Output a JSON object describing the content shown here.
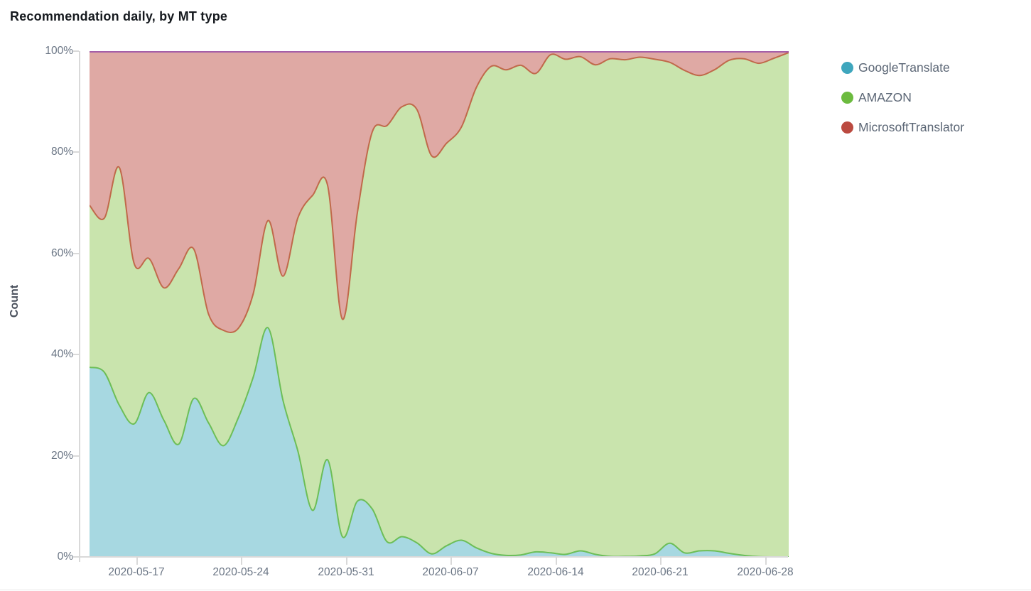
{
  "title": "Recommendation daily, by MT type",
  "y_axis": {
    "label": "Count",
    "ticks": [
      "100%",
      "80%",
      "60%",
      "40%",
      "20%",
      "0%"
    ]
  },
  "x_axis": {
    "ticks": [
      "2020-05-17",
      "2020-05-24",
      "2020-05-31",
      "2020-06-07",
      "2020-06-14",
      "2020-06-21",
      "2020-06-28"
    ]
  },
  "legend": [
    {
      "label": "GoogleTranslate",
      "color": "#3ea6bd"
    },
    {
      "label": "AMAZON",
      "color": "#6cbb3f"
    },
    {
      "label": "MicrosoftTranslator",
      "color": "#bb4a40"
    }
  ],
  "chart_data": {
    "type": "area",
    "stacked": true,
    "normalized": "percent",
    "title": "Recommendation daily, by MT type",
    "xlabel": "",
    "ylabel": "Count",
    "ylim": [
      0,
      100
    ],
    "grid": false,
    "legend_position": "right",
    "top_border_color": "#a55fa8",
    "x": [
      "2020-05-14",
      "2020-05-15",
      "2020-05-16",
      "2020-05-17",
      "2020-05-18",
      "2020-05-19",
      "2020-05-20",
      "2020-05-21",
      "2020-05-22",
      "2020-05-23",
      "2020-05-24",
      "2020-05-25",
      "2020-05-26",
      "2020-05-27",
      "2020-05-28",
      "2020-05-29",
      "2020-05-30",
      "2020-05-31",
      "2020-06-01",
      "2020-06-02",
      "2020-06-03",
      "2020-06-04",
      "2020-06-05",
      "2020-06-06",
      "2020-06-07",
      "2020-06-08",
      "2020-06-09",
      "2020-06-10",
      "2020-06-11",
      "2020-06-12",
      "2020-06-13",
      "2020-06-14",
      "2020-06-15",
      "2020-06-16",
      "2020-06-17",
      "2020-06-18",
      "2020-06-19",
      "2020-06-20",
      "2020-06-21",
      "2020-06-22",
      "2020-06-23",
      "2020-06-24",
      "2020-06-25",
      "2020-06-26",
      "2020-06-27",
      "2020-06-28",
      "2020-06-29",
      "2020-06-30"
    ],
    "series": [
      {
        "name": "GoogleTranslate",
        "fill_color": "#a7d8e1",
        "line_color": "#62b8c9",
        "values": [
          37.5,
          36.5,
          30,
          26.3,
          32.5,
          27,
          22.3,
          31.3,
          26.5,
          22,
          27.5,
          35.5,
          45.3,
          31,
          21,
          9.2,
          19.2,
          4,
          11,
          9.5,
          3,
          4,
          2.8,
          0.6,
          2.2,
          3.3,
          1.8,
          0.7,
          0.3,
          0.4,
          1,
          0.8,
          0.5,
          1.2,
          0.5,
          0.1,
          0.1,
          0.2,
          0.6,
          2.7,
          0.8,
          1.2,
          1.2,
          0.7,
          0.3,
          0.05,
          0,
          0
        ]
      },
      {
        "name": "AMAZON",
        "fill_color": "#c9e4ad",
        "line_color": "#6cbe57",
        "values": [
          32,
          30.5,
          47,
          31.7,
          26.5,
          26.2,
          34.7,
          29.6,
          21.5,
          22.8,
          17.7,
          16.5,
          21.2,
          24.5,
          46,
          62.3,
          54.3,
          43,
          57,
          74.5,
          82.3,
          85,
          85.7,
          78.7,
          79.6,
          81.7,
          91,
          96.3,
          96,
          96.8,
          94.6,
          98.5,
          97.9,
          97.7,
          96.8,
          98.4,
          98.2,
          98.6,
          97.8,
          95.1,
          95.4,
          94,
          95.1,
          97.5,
          98.2,
          97.55,
          98.6,
          99.7
        ]
      },
      {
        "name": "MicrosoftTranslator",
        "fill_color": "#dfa9a4",
        "line_color": "#c0694a",
        "values": [
          30.5,
          33,
          23,
          42,
          41,
          46.8,
          43,
          39.1,
          52,
          55.2,
          54.8,
          48,
          33.5,
          44.5,
          33,
          28.5,
          26.5,
          53,
          32,
          16,
          14.7,
          11,
          11.5,
          20.7,
          18.2,
          15,
          7.2,
          3,
          3.7,
          2.8,
          4.4,
          0.7,
          1.6,
          1.1,
          2.7,
          1.5,
          1.7,
          1.2,
          1.6,
          2.2,
          3.8,
          4.8,
          3.7,
          1.8,
          1.5,
          2.4,
          1.4,
          0.3
        ]
      }
    ]
  }
}
